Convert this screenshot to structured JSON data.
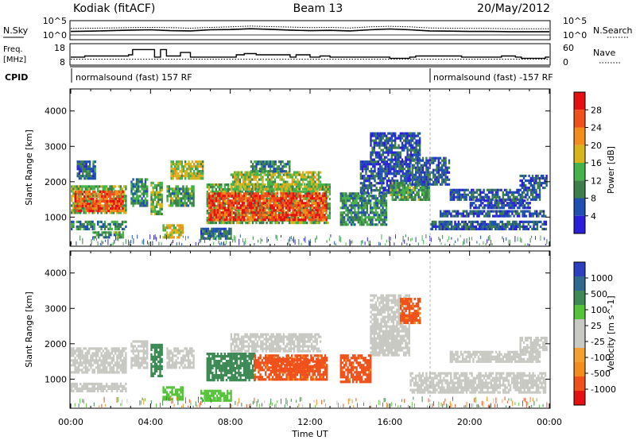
{
  "header": {
    "station": "Kodiak (fitACF)",
    "beam": "Beam 13",
    "date": "20/May/2012"
  },
  "colors": {
    "power_scale": [
      "#2b1fd9",
      "#1f4fb0",
      "#3d7f4a",
      "#46b24a",
      "#d8b41c",
      "#f28c1a",
      "#f0501a",
      "#e61010"
    ],
    "velocity_scale": [
      "#e61010",
      "#f0501a",
      "#f28c1a",
      "#f2a030",
      "#c9c9c3",
      "#c9c9c3",
      "#56c43a",
      "#3d8a55",
      "#2f6a90",
      "#2b3fbf"
    ],
    "ground_scatter": "#c9c9c3"
  },
  "chart_data": [
    {
      "type": "line",
      "panel": "noise",
      "left_label": "N.Sky",
      "right_label": "N.Search",
      "left_ticks": [
        "10^5",
        "10^0"
      ],
      "right_ticks": [
        "10^5",
        "10^0"
      ],
      "x_hours": [
        0,
        1,
        2,
        3,
        4,
        5,
        6,
        7,
        8,
        9,
        10,
        11,
        12,
        13,
        14,
        15,
        16,
        17,
        18,
        19,
        20,
        21,
        22,
        23,
        24
      ],
      "sky_log10": [
        1.3,
        1.4,
        1.6,
        1.8,
        1.9,
        1.6,
        1.5,
        1.9,
        2.0,
        2.3,
        2.1,
        1.8,
        1.6,
        1.7,
        1.5,
        1.9,
        2.2,
        1.9,
        1.5,
        1.4,
        1.3,
        1.3,
        1.2,
        1.2,
        1.2
      ],
      "search_log10": [
        2.4,
        2.5,
        2.6,
        2.7,
        2.8,
        2.7,
        2.5,
        2.8,
        3.0,
        3.3,
        3.1,
        2.9,
        2.7,
        2.8,
        2.6,
        3.0,
        3.2,
        3.0,
        2.6,
        2.5,
        2.4,
        2.4,
        2.3,
        2.3,
        2.3
      ]
    },
    {
      "type": "line",
      "panel": "frequency",
      "left_label_lines": [
        "Freq.",
        "[MHz]"
      ],
      "right_label": "Nave",
      "left_ticks": [
        "18",
        "8"
      ],
      "right_ticks": [
        "60",
        "0"
      ],
      "ylim": [
        8,
        18
      ],
      "y2lim": [
        0,
        60
      ],
      "step_x_hours": [
        0,
        0.7,
        1.0,
        2.9,
        3.1,
        4.0,
        4.2,
        4.5,
        4.8,
        5.5,
        6.0,
        8.3,
        8.7,
        9.0,
        9.3,
        11.0,
        11.3,
        12.0,
        12.5,
        13.0,
        13.3,
        16.0,
        17.0,
        17.3,
        19.6,
        21.6,
        22.3,
        22.6,
        23.8,
        24.0
      ],
      "nave": [
        22,
        26,
        26,
        30,
        48,
        48,
        22,
        48,
        26,
        38,
        22,
        30,
        34,
        34,
        30,
        22,
        30,
        22,
        26,
        22,
        22,
        18,
        22,
        26,
        22,
        26,
        22,
        18,
        22,
        22
      ],
      "frequency_mhz": [
        10.5,
        10.5,
        10.5,
        10.5,
        10.5,
        10.5,
        10.5,
        10.5,
        10.5,
        10.5,
        10.5,
        10.5,
        10.5,
        10.5,
        10.5,
        10.5,
        10.5,
        10.5,
        10.5,
        10.5,
        10.5,
        10.5,
        10.5,
        10.5,
        10.5,
        10.5,
        10.5,
        10.5,
        10.5,
        10.5
      ]
    },
    {
      "type": "table",
      "panel": "cpid",
      "label": "CPID",
      "segments": [
        {
          "start_hour": 0,
          "text": "normalsound (fast) 157 RF"
        },
        {
          "start_hour": 18.0,
          "text": "normalsound (fast) -157 RF"
        }
      ]
    },
    {
      "type": "heatmap",
      "panel": "power",
      "ylabel": "Slant Range [km]",
      "xlim": [
        0,
        24
      ],
      "ylim": [
        200,
        4600
      ],
      "yticks": [
        1000,
        2000,
        3000,
        4000
      ],
      "colorbar_label": "Power [dB]",
      "colorbar_ticks": [
        "28",
        "24",
        "20",
        "16",
        "12",
        "8",
        "4"
      ],
      "colorbar_range": [
        0,
        32
      ],
      "regions": [
        {
          "t0": 0.0,
          "t1": 2.8,
          "r0": 1100,
          "r1": 1900,
          "value": 14
        },
        {
          "t0": 0.2,
          "t1": 2.6,
          "r0": 1200,
          "r1": 1750,
          "value": 26
        },
        {
          "t0": 0.0,
          "t1": 2.8,
          "r0": 650,
          "r1": 900,
          "value": 10
        },
        {
          "t0": 0.3,
          "t1": 1.2,
          "r0": 2100,
          "r1": 2600,
          "value": 8
        },
        {
          "t0": 1.0,
          "t1": 2.6,
          "r0": 400,
          "r1": 600,
          "value": 12
        },
        {
          "t0": 3.0,
          "t1": 3.8,
          "r0": 1300,
          "r1": 2100,
          "value": 10
        },
        {
          "t0": 4.0,
          "t1": 4.6,
          "r0": 1100,
          "r1": 2000,
          "value": 14
        },
        {
          "t0": 4.6,
          "t1": 5.6,
          "r0": 400,
          "r1": 800,
          "value": 18
        },
        {
          "t0": 4.8,
          "t1": 6.2,
          "r0": 1300,
          "r1": 1900,
          "value": 12
        },
        {
          "t0": 5.0,
          "t1": 6.6,
          "r0": 2100,
          "r1": 2600,
          "value": 16
        },
        {
          "t0": 6.8,
          "t1": 13.0,
          "r0": 850,
          "r1": 1950,
          "value": 14
        },
        {
          "t0": 6.9,
          "t1": 12.8,
          "r0": 950,
          "r1": 1700,
          "value": 27
        },
        {
          "t0": 8.0,
          "t1": 12.5,
          "r0": 1800,
          "r1": 2300,
          "value": 16
        },
        {
          "t0": 9.0,
          "t1": 11.0,
          "r0": 2300,
          "r1": 2600,
          "value": 10
        },
        {
          "t0": 6.5,
          "t1": 8.0,
          "r0": 400,
          "r1": 700,
          "value": 8
        },
        {
          "t0": 13.5,
          "t1": 15.8,
          "r0": 800,
          "r1": 1700,
          "value": 10
        },
        {
          "t0": 14.5,
          "t1": 17.0,
          "r0": 1700,
          "r1": 2600,
          "value": 6
        },
        {
          "t0": 15.0,
          "t1": 17.5,
          "r0": 2600,
          "r1": 3400,
          "value": 6
        },
        {
          "t0": 16.0,
          "t1": 18.0,
          "r0": 1500,
          "r1": 2000,
          "value": 12
        },
        {
          "t0": 17.0,
          "t1": 19.0,
          "r0": 1900,
          "r1": 2700,
          "value": 7
        },
        {
          "t0": 18.0,
          "t1": 23.8,
          "r0": 650,
          "r1": 900,
          "value": 7
        },
        {
          "t0": 18.5,
          "t1": 23.8,
          "r0": 1000,
          "r1": 1200,
          "value": 6
        },
        {
          "t0": 19.0,
          "t1": 23.5,
          "r0": 1500,
          "r1": 1800,
          "value": 7
        },
        {
          "t0": 22.5,
          "t1": 23.9,
          "r0": 1800,
          "r1": 2200,
          "value": 6
        },
        {
          "t0": 20.0,
          "t1": 23.0,
          "r0": 1250,
          "r1": 1500,
          "value": 5
        }
      ]
    },
    {
      "type": "heatmap",
      "panel": "velocity",
      "ylabel": "Slant Range [km]",
      "xlabel": "Time UT",
      "xlim": [
        0,
        24
      ],
      "ylim": [
        200,
        4600
      ],
      "yticks": [
        1000,
        2000,
        3000,
        4000
      ],
      "xticks": [
        "00:00",
        "04:00",
        "08:00",
        "12:00",
        "16:00",
        "20:00",
        "00:00"
      ],
      "colorbar_label": "Velocity [m s^-1]",
      "colorbar_ticks": [
        "1000",
        "500",
        "100",
        "25",
        "-25",
        "-100",
        "-500",
        "-1000"
      ],
      "regions": [
        {
          "t0": 0.0,
          "t1": 2.8,
          "r0": 1200,
          "r1": 1900,
          "value": 0
        },
        {
          "t0": 0.0,
          "t1": 2.8,
          "r0": 650,
          "r1": 900,
          "value": 0
        },
        {
          "t0": 3.0,
          "t1": 3.8,
          "r0": 1300,
          "r1": 2100,
          "value": 0
        },
        {
          "t0": 4.0,
          "t1": 4.6,
          "r0": 1100,
          "r1": 2000,
          "value": 300
        },
        {
          "t0": 4.6,
          "t1": 5.6,
          "r0": 400,
          "r1": 800,
          "value": 60
        },
        {
          "t0": 4.8,
          "t1": 6.2,
          "r0": 1300,
          "r1": 1900,
          "value": 0
        },
        {
          "t0": 6.8,
          "t1": 9.2,
          "r0": 950,
          "r1": 1750,
          "value": 250
        },
        {
          "t0": 9.2,
          "t1": 12.8,
          "r0": 1000,
          "r1": 1700,
          "value": -150
        },
        {
          "t0": 10.0,
          "t1": 12.5,
          "r0": 1200,
          "r1": 1600,
          "value": -350
        },
        {
          "t0": 6.5,
          "t1": 8.0,
          "r0": 400,
          "r1": 700,
          "value": 60
        },
        {
          "t0": 8.0,
          "t1": 12.5,
          "r0": 1800,
          "r1": 2300,
          "value": 0
        },
        {
          "t0": 13.5,
          "t1": 15.0,
          "r0": 900,
          "r1": 1700,
          "value": -150
        },
        {
          "t0": 15.0,
          "t1": 17.0,
          "r0": 1700,
          "r1": 3400,
          "value": 0
        },
        {
          "t0": 16.5,
          "t1": 17.5,
          "r0": 2600,
          "r1": 3300,
          "value": -150
        },
        {
          "t0": 17.0,
          "t1": 23.8,
          "r0": 650,
          "r1": 1200,
          "value": 0
        },
        {
          "t0": 19.0,
          "t1": 23.5,
          "r0": 1500,
          "r1": 1800,
          "value": 0
        },
        {
          "t0": 22.5,
          "t1": 23.9,
          "r0": 1800,
          "r1": 2200,
          "value": 0
        }
      ]
    }
  ]
}
